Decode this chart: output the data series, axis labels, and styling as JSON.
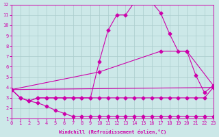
{
  "xlabel": "Windchill (Refroidissement éolien,°C)",
  "bg_color": "#cce8e8",
  "grid_color": "#aacccc",
  "line_color": "#cc00aa",
  "xlim": [
    0,
    23
  ],
  "ylim": [
    1,
    12
  ],
  "xticks": [
    0,
    1,
    2,
    3,
    4,
    5,
    6,
    7,
    8,
    9,
    10,
    11,
    12,
    13,
    14,
    15,
    16,
    17,
    18,
    19,
    20,
    21,
    22,
    23
  ],
  "yticks": [
    1,
    2,
    3,
    4,
    5,
    6,
    7,
    8,
    9,
    10,
    11,
    12
  ],
  "line1_x": [
    0,
    1,
    2,
    3,
    4,
    5,
    6,
    7,
    8,
    9,
    10,
    11,
    12,
    13,
    14,
    15,
    16,
    17,
    18,
    19,
    20,
    21,
    22,
    23
  ],
  "line1_y": [
    3.8,
    3.0,
    2.7,
    2.5,
    2.2,
    1.8,
    1.5,
    1.2,
    1.2,
    1.2,
    1.2,
    1.2,
    1.2,
    1.2,
    1.2,
    1.2,
    1.2,
    1.2,
    1.2,
    1.2,
    1.2,
    1.2,
    1.2,
    1.2
  ],
  "line2_x": [
    0,
    1,
    2,
    3,
    4,
    5,
    6,
    7,
    8,
    9,
    10,
    11,
    12,
    13,
    14,
    15,
    16,
    17,
    18,
    19,
    20,
    21,
    22,
    23
  ],
  "line2_y": [
    3.8,
    3.0,
    2.7,
    3.0,
    3.0,
    3.0,
    3.0,
    3.0,
    3.0,
    3.0,
    3.0,
    3.0,
    3.0,
    3.0,
    3.0,
    3.0,
    3.0,
    3.0,
    3.0,
    3.0,
    3.0,
    3.0,
    3.0,
    4.0
  ],
  "line3_x": [
    0,
    23
  ],
  "line3_y": [
    3.8,
    4.0
  ],
  "line4_x": [
    0,
    1,
    2,
    3,
    4,
    5,
    6,
    7,
    8,
    9,
    10,
    11,
    12,
    13,
    14,
    15,
    16,
    17,
    18,
    19,
    20,
    21,
    22,
    23
  ],
  "line4_y": [
    3.8,
    3.0,
    2.7,
    3.0,
    3.0,
    3.0,
    3.0,
    3.0,
    3.0,
    3.0,
    6.5,
    9.5,
    11.0,
    11.0,
    12.2,
    12.4,
    12.2,
    11.2,
    9.2,
    7.5,
    7.5,
    5.2,
    3.5,
    4.2
  ],
  "line5_x": [
    0,
    10,
    17,
    20,
    23
  ],
  "line5_y": [
    3.8,
    5.5,
    7.5,
    7.5,
    4.2
  ],
  "marker": "D",
  "markersize": 2.5
}
